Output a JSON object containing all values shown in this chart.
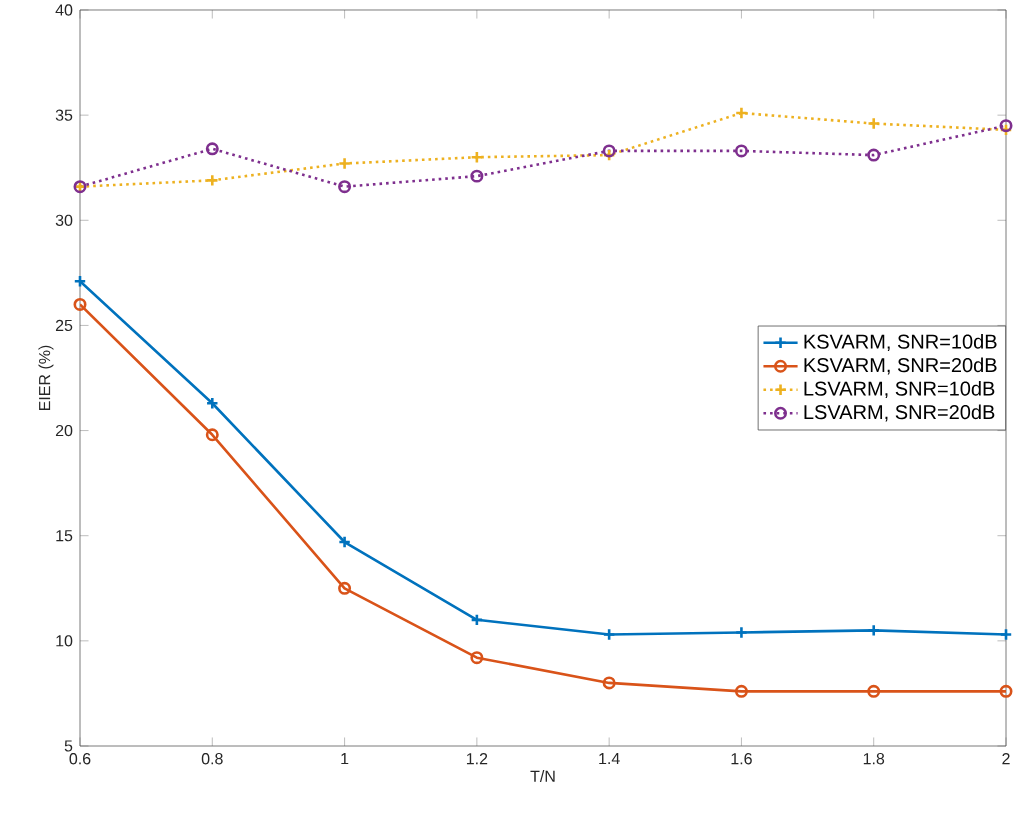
{
  "chart_data": {
    "type": "line",
    "xlabel": "T/N",
    "ylabel": "EIER (%)",
    "x": [
      0.6,
      0.8,
      1.0,
      1.2,
      1.4,
      1.6,
      1.8,
      2.0
    ],
    "series": [
      {
        "name": "KSVARM, SNR=10dB",
        "color": "#0072bd",
        "marker": "cross",
        "line_style": "solid",
        "values": [
          27.1,
          21.3,
          14.7,
          11.0,
          10.3,
          10.4,
          10.5,
          10.3
        ]
      },
      {
        "name": "KSVARM, SNR=20dB",
        "color": "#d95319",
        "marker": "circle",
        "line_style": "solid",
        "values": [
          26.0,
          19.8,
          12.5,
          9.2,
          8.0,
          7.6,
          7.6,
          7.6
        ]
      },
      {
        "name": "LSVARM, SNR=10dB",
        "color": "#edb120",
        "marker": "cross",
        "line_style": "dotted",
        "values": [
          31.6,
          31.9,
          32.7,
          33.0,
          33.1,
          35.1,
          34.6,
          34.3
        ]
      },
      {
        "name": "LSVARM, SNR=20dB",
        "color": "#7e2f8e",
        "marker": "circle",
        "line_style": "dotted",
        "values": [
          31.6,
          33.4,
          31.6,
          32.1,
          33.3,
          33.3,
          33.1,
          34.5
        ]
      }
    ],
    "xlim": [
      0.6,
      2.0
    ],
    "ylim": [
      5,
      40
    ],
    "xticks": [
      0.6,
      0.8,
      1,
      1.2,
      1.4,
      1.6,
      1.8,
      2
    ],
    "yticks": [
      5,
      10,
      15,
      20,
      25,
      30,
      35,
      40
    ],
    "grid": false,
    "legend": "right"
  }
}
